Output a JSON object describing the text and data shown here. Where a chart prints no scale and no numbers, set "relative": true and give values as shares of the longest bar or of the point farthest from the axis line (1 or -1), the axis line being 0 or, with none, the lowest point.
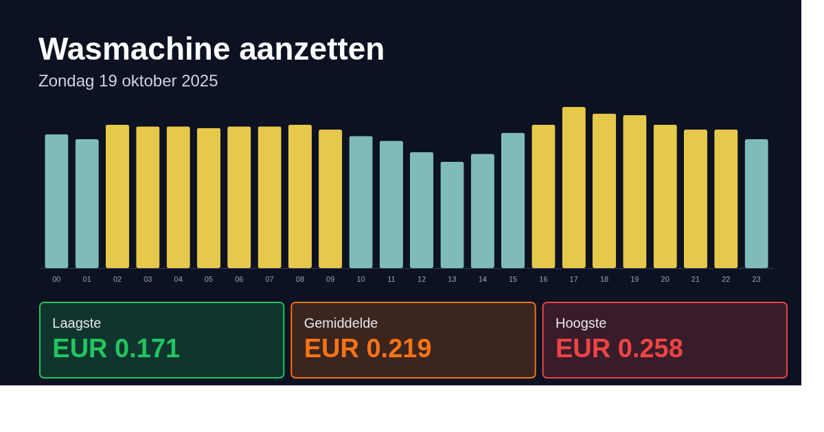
{
  "chart_data": [
    {
      "type": "bar",
      "title": "Wasmachine aanzetten",
      "subtitle": "Zondag 19 oktober 2025",
      "relative": true,
      "categories": [
        "00",
        "01",
        "02",
        "03",
        "04",
        "05",
        "06",
        "07",
        "08",
        "09",
        "10",
        "11",
        "12",
        "13",
        "14",
        "15",
        "16",
        "17",
        "18",
        "19",
        "20",
        "21",
        "22",
        "23"
      ],
      "values": [
        0.83,
        0.8,
        0.89,
        0.88,
        0.88,
        0.87,
        0.88,
        0.88,
        0.89,
        0.86,
        0.82,
        0.79,
        0.72,
        0.66,
        0.71,
        0.84,
        0.89,
        1,
        0.96,
        0.95,
        0.89,
        0.86,
        0.86,
        0.8
      ],
      "colors": [
        "#7fbbbb",
        "#7fbbbb",
        "#e6c84a",
        "#e6c84a",
        "#e6c84a",
        "#e6c84a",
        "#e6c84a",
        "#e6c84a",
        "#e6c84a",
        "#e6c84a",
        "#7fbbbb",
        "#7fbbbb",
        "#7fbbbb",
        "#7fbbbb",
        "#7fbbbb",
        "#7fbbbb",
        "#e6c84a",
        "#e6c84a",
        "#e6c84a",
        "#e6c84a",
        "#e6c84a",
        "#e6c84a",
        "#e6c84a",
        "#7fbbbb"
      ]
    },
    {
      "type": "other",
      "annotations": [
        "Laagste",
        "EUR 0.171",
        "Gemiddelde",
        "EUR 0.219",
        "Hoogste",
        "EUR 0.258"
      ],
      "colors": [
        "#22c55e",
        "#f97316",
        "#ef4444"
      ]
    }
  ]
}
